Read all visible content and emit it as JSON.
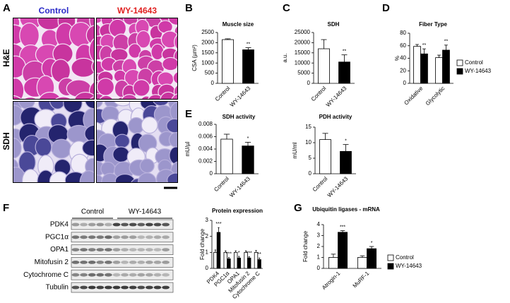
{
  "figure": {
    "panel_labels": [
      "A",
      "B",
      "C",
      "D",
      "E",
      "F",
      "G"
    ],
    "histology": {
      "columns": [
        "Control",
        "WY-14643"
      ],
      "rows": [
        "H&E",
        "SDH"
      ]
    },
    "blot": {
      "groups": [
        "Control",
        "WY-14643"
      ],
      "proteins": [
        "PDK4",
        "PGC1α",
        "OPA1",
        "Mitofusin 2",
        "Cytochrome C",
        "Tubulin"
      ]
    }
  },
  "chart_data": [
    {
      "type": "bar",
      "title": "Muscle size",
      "y_label": "CSA (µm²)",
      "categories": [
        "Control",
        "WY-14643"
      ],
      "values": [
        2150,
        1650
      ],
      "errors": [
        40,
        100
      ],
      "annotations": [
        null,
        "**"
      ],
      "colors": [
        "#ffffff",
        "#000000"
      ],
      "ylim": [
        0,
        2500
      ],
      "yticks": [
        0,
        500,
        1000,
        1500,
        2000,
        2500
      ]
    },
    {
      "type": "bar",
      "title": "SDH",
      "y_label": "a.u.",
      "categories": [
        "Control",
        "WY-14643"
      ],
      "values": [
        17000,
        10500
      ],
      "errors": [
        4500,
        3500
      ],
      "annotations": [
        null,
        "**"
      ],
      "colors": [
        "#ffffff",
        "#000000"
      ],
      "ylim": [
        0,
        25000
      ],
      "yticks": [
        0,
        5000,
        10000,
        15000,
        20000,
        25000
      ]
    },
    {
      "type": "bar",
      "title": "Fiber Type",
      "y_label": "%",
      "categories": [
        "Oxidative",
        "Glycolytic"
      ],
      "series": [
        {
          "name": "Control",
          "color": "#ffffff",
          "values": [
            59,
            41
          ],
          "errors": [
            3,
            4
          ],
          "annotations": [
            null,
            null
          ]
        },
        {
          "name": "WY-14643",
          "color": "#000000",
          "values": [
            47,
            53
          ],
          "errors": [
            8,
            8
          ],
          "annotations": [
            "**",
            "**"
          ]
        }
      ],
      "ylim": [
        0,
        80
      ],
      "yticks": [
        0,
        20,
        40,
        60,
        80
      ],
      "legend": "right"
    },
    {
      "type": "bar",
      "title": "SDH activity",
      "y_label": "mU/µl",
      "categories": [
        "Control",
        "WY-14643"
      ],
      "values": [
        0.0056,
        0.0045
      ],
      "errors": [
        0.0008,
        0.0006
      ],
      "annotations": [
        null,
        "*"
      ],
      "colors": [
        "#ffffff",
        "#000000"
      ],
      "ylim": [
        0,
        0.008
      ],
      "yticks": [
        0,
        0.002,
        0.004,
        0.006,
        0.008
      ]
    },
    {
      "type": "bar",
      "title": "PDH activity",
      "y_label": "mU/ml",
      "categories": [
        "Control",
        "WY-14643"
      ],
      "values": [
        11,
        7.2
      ],
      "errors": [
        2,
        2.2
      ],
      "annotations": [
        null,
        "*"
      ],
      "colors": [
        "#ffffff",
        "#000000"
      ],
      "ylim": [
        0,
        15
      ],
      "yticks": [
        0,
        5,
        10,
        15
      ]
    },
    {
      "type": "bar",
      "title": "Protein expression",
      "y_label": "Fold change",
      "categories": [
        "PDK4",
        "PGC1α",
        "OPA1",
        "Mitofusin 2",
        "Cytochrome C"
      ],
      "series": [
        {
          "name": "Control",
          "color": "#ffffff",
          "values": [
            1,
            1,
            1,
            1,
            1
          ],
          "errors": [
            0.15,
            0.1,
            0.1,
            0.1,
            0.12
          ],
          "annotations": [
            null,
            null,
            null,
            null,
            null
          ]
        },
        {
          "name": "WY-14643",
          "color": "#000000",
          "values": [
            2.25,
            0.6,
            0.65,
            0.65,
            0.55
          ],
          "errors": [
            0.3,
            0.08,
            0.1,
            0.08,
            0.1
          ],
          "annotations": [
            "***",
            "***",
            "*",
            "***",
            "**"
          ]
        }
      ],
      "ylim": [
        0,
        3
      ],
      "yticks": [
        0,
        1,
        2,
        3
      ]
    },
    {
      "type": "bar",
      "title": "Ubiquitin ligases - mRNA",
      "y_label": "Fold change",
      "categories": [
        "Atrogin-1",
        "MuRF-1"
      ],
      "series": [
        {
          "name": "Control",
          "color": "#ffffff",
          "values": [
            1,
            1
          ],
          "errors": [
            0.3,
            0.15
          ],
          "annotations": [
            null,
            null
          ]
        },
        {
          "name": "WY-14643",
          "color": "#000000",
          "values": [
            3.3,
            1.8
          ],
          "errors": [
            0.15,
            0.2
          ],
          "annotations": [
            "***",
            "*"
          ]
        }
      ],
      "ylim": [
        0,
        4
      ],
      "yticks": [
        0,
        1,
        2,
        3,
        4
      ],
      "legend": "right"
    }
  ]
}
